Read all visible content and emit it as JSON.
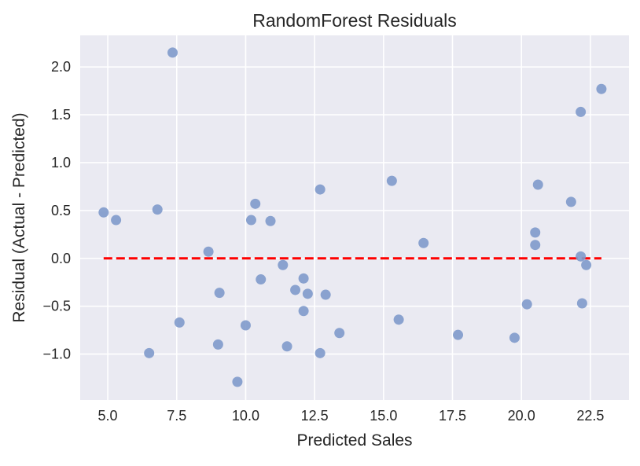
{
  "chart_data": {
    "type": "scatter",
    "title": "RandomForest Residuals",
    "xlabel": "Predicted Sales",
    "ylabel": "Residual (Actual - Predicted)",
    "xlim": [
      4.0,
      23.9
    ],
    "ylim": [
      -1.48,
      2.33
    ],
    "xticks": [
      5.0,
      7.5,
      10.0,
      12.5,
      15.0,
      17.5,
      20.0,
      22.5
    ],
    "xtick_labels": [
      "5.0",
      "7.5",
      "10.0",
      "12.5",
      "15.0",
      "17.5",
      "20.0",
      "22.5"
    ],
    "yticks": [
      -1.0,
      -0.5,
      0.0,
      0.5,
      1.0,
      1.5,
      2.0
    ],
    "ytick_labels": [
      "−1.0",
      "−0.5",
      "0.0",
      "0.5",
      "1.0",
      "1.5",
      "2.0"
    ],
    "grid": true,
    "reference_line": {
      "y": 0.0,
      "x_range": [
        4.85,
        22.9
      ],
      "style": "dashed",
      "color": "#ff0000"
    },
    "points": [
      {
        "x": 4.85,
        "y": 0.48
      },
      {
        "x": 5.3,
        "y": 0.4
      },
      {
        "x": 6.5,
        "y": -0.99
      },
      {
        "x": 6.8,
        "y": 0.51
      },
      {
        "x": 7.35,
        "y": 2.15
      },
      {
        "x": 7.6,
        "y": -0.67
      },
      {
        "x": 8.65,
        "y": 0.07
      },
      {
        "x": 9.0,
        "y": -0.9
      },
      {
        "x": 9.05,
        "y": -0.36
      },
      {
        "x": 9.7,
        "y": -1.29
      },
      {
        "x": 10.0,
        "y": -0.7
      },
      {
        "x": 10.2,
        "y": 0.4
      },
      {
        "x": 10.35,
        "y": 0.57
      },
      {
        "x": 10.55,
        "y": -0.22
      },
      {
        "x": 10.9,
        "y": 0.39
      },
      {
        "x": 11.35,
        "y": -0.07
      },
      {
        "x": 11.5,
        "y": -0.92
      },
      {
        "x": 11.8,
        "y": -0.33
      },
      {
        "x": 12.1,
        "y": -0.21
      },
      {
        "x": 12.1,
        "y": -0.55
      },
      {
        "x": 12.25,
        "y": -0.37
      },
      {
        "x": 12.7,
        "y": 0.72
      },
      {
        "x": 12.7,
        "y": -0.99
      },
      {
        "x": 12.9,
        "y": -0.38
      },
      {
        "x": 13.4,
        "y": -0.78
      },
      {
        "x": 15.3,
        "y": 0.81
      },
      {
        "x": 15.55,
        "y": -0.64
      },
      {
        "x": 16.45,
        "y": 0.16
      },
      {
        "x": 17.7,
        "y": -0.8
      },
      {
        "x": 19.75,
        "y": -0.83
      },
      {
        "x": 20.2,
        "y": -0.48
      },
      {
        "x": 20.5,
        "y": 0.27
      },
      {
        "x": 20.5,
        "y": 0.14
      },
      {
        "x": 20.6,
        "y": 0.77
      },
      {
        "x": 21.8,
        "y": 0.59
      },
      {
        "x": 22.15,
        "y": 1.53
      },
      {
        "x": 22.15,
        "y": 0.02
      },
      {
        "x": 22.2,
        "y": -0.47
      },
      {
        "x": 22.35,
        "y": -0.07
      },
      {
        "x": 22.9,
        "y": 1.77
      }
    ],
    "colors": {
      "background": "#eaeaf2",
      "grid": "#ffffff",
      "point": "#7f9acb",
      "reference_line": "#ff0000"
    }
  }
}
